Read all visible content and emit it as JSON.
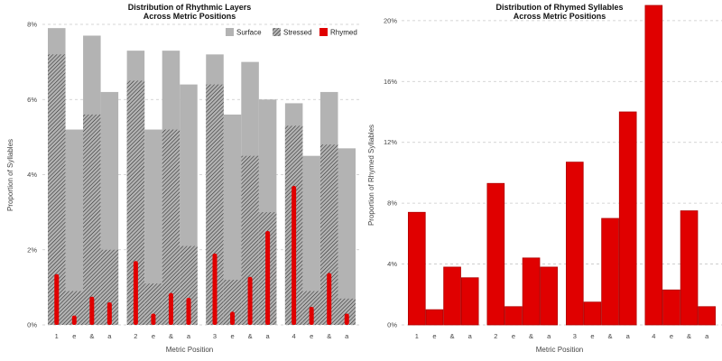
{
  "chart_data": [
    {
      "type": "bar",
      "title": [
        "Distribution of Rhythmic Layers",
        "Across Metric Positions"
      ],
      "xlabel": "Metric Position",
      "ylabel": "Proportion of Syllables",
      "ylim": [
        0,
        0.08
      ],
      "y_ticks": [
        0,
        0.02,
        0.04,
        0.06,
        0.08
      ],
      "y_tick_labels": [
        "0%",
        "2%",
        "4%",
        "6%",
        "8%"
      ],
      "categories": [
        "1",
        "e",
        "&",
        "a",
        "2",
        "e",
        "&",
        "a",
        "3",
        "e",
        "&",
        "a",
        "4",
        "e",
        "&",
        "a"
      ],
      "legend_placement": "top-right",
      "grid": "horizontal-dashed",
      "series": [
        {
          "name": "Surface",
          "style": "solid",
          "color": "#b3b3b3",
          "values": [
            0.079,
            0.052,
            0.077,
            0.062,
            0.073,
            0.052,
            0.073,
            0.064,
            0.072,
            0.056,
            0.07,
            0.06,
            0.059,
            0.045,
            0.062,
            0.047
          ]
        },
        {
          "name": "Stressed",
          "style": "hatched",
          "color": "#b3b3b3",
          "values": [
            0.072,
            0.009,
            0.056,
            0.02,
            0.065,
            0.011,
            0.052,
            0.021,
            0.064,
            0.012,
            0.045,
            0.03,
            0.053,
            0.009,
            0.048,
            0.007
          ]
        },
        {
          "name": "Rhymed",
          "style": "solid",
          "color": "#e00000",
          "values": [
            0.0135,
            0.0025,
            0.0075,
            0.006,
            0.017,
            0.003,
            0.0085,
            0.0072,
            0.019,
            0.0035,
            0.0128,
            0.025,
            0.037,
            0.0048,
            0.0138,
            0.003
          ]
        }
      ]
    },
    {
      "type": "bar",
      "title": [
        "Distribution of Rhymed Syllables",
        "Across Metric Positions"
      ],
      "xlabel": "Metric Position",
      "ylabel": "Proportion of Rhymed Syllables",
      "ylim": [
        0,
        0.21
      ],
      "y_ticks": [
        0,
        0.04,
        0.08,
        0.12,
        0.16,
        0.2
      ],
      "y_tick_labels": [
        "0%",
        "4%",
        "8%",
        "12%",
        "16%",
        "20%"
      ],
      "categories": [
        "1",
        "e",
        "&",
        "a",
        "2",
        "e",
        "&",
        "a",
        "3",
        "e",
        "&",
        "a",
        "4",
        "e",
        "&",
        "a"
      ],
      "grid": "horizontal-dashed",
      "series": [
        {
          "name": "",
          "color": "#e00000",
          "edge_color": "#b00000",
          "values": [
            0.074,
            0.01,
            0.038,
            0.031,
            0.093,
            0.012,
            0.044,
            0.038,
            0.107,
            0.015,
            0.07,
            0.14,
            0.21,
            0.023,
            0.075,
            0.012
          ]
        }
      ]
    }
  ]
}
